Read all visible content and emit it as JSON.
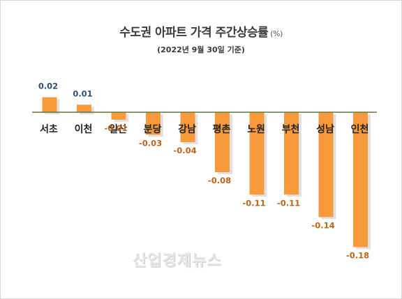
{
  "header": {
    "title": "수도권 아파트 가격 주간상승률",
    "unit": "(%)",
    "subtitle": "(2022년 9월 30일 기준)"
  },
  "watermark": "산업경제뉴스",
  "colors": {
    "bar": "#f79a3b",
    "bar_shadow": "#c9c9c9",
    "axis": "#5a7a3a",
    "positive_label": "#2e4f78",
    "negative_label": "#c0631a",
    "category_label": "#222222"
  },
  "chart_data": {
    "type": "bar",
    "title": "수도권 아파트 가격 주간상승률",
    "categories": [
      "서초",
      "이천",
      "일산",
      "분당",
      "강남",
      "평촌",
      "노원",
      "부천",
      "성남",
      "인천"
    ],
    "values": [
      0.02,
      0.01,
      -0.01,
      -0.03,
      -0.04,
      -0.08,
      -0.11,
      -0.11,
      -0.14,
      -0.18
    ],
    "value_labels": [
      "0.02",
      "0.01",
      "-0.01",
      "-0.03",
      "-0.04",
      "-0.08",
      "-0.11",
      "-0.11",
      "-0.14",
      "-0.18"
    ],
    "xlabel": "",
    "ylabel": "",
    "grid": false,
    "legend": "none"
  }
}
